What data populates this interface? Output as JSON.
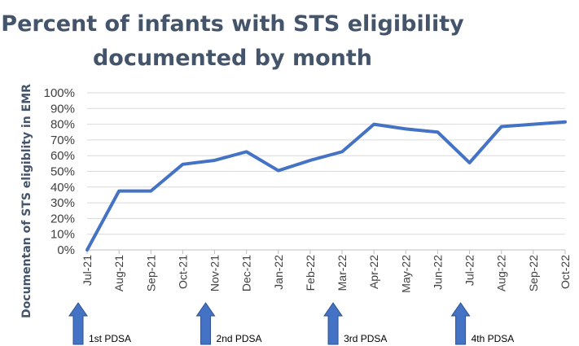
{
  "chart_data": {
    "type": "line",
    "title_lines": [
      "Percent of infants with STS eligibility",
      "documented by month"
    ],
    "xlabel": "",
    "ylabel": "Documentan of STS eligiblity in EMR",
    "categories": [
      "Jul-21",
      "Aug-21",
      "Sep-21",
      "Oct-21",
      "Nov-21",
      "Dec-21",
      "Jan-22",
      "Feb-22",
      "Mar-22",
      "Apr-22",
      "May-22",
      "Jun-22",
      "Jul-22",
      "Aug-22",
      "Sep-22",
      "Oct-22"
    ],
    "series": [
      {
        "values": [
          0,
          37.5,
          37.5,
          54.5,
          57,
          62.5,
          50.5,
          57,
          62.5,
          80,
          77,
          75,
          55.5,
          78.5,
          80,
          81.5
        ]
      }
    ],
    "ylim": [
      0,
      100
    ],
    "yticks": [
      0,
      10,
      20,
      30,
      40,
      50,
      60,
      70,
      80,
      90,
      100
    ],
    "ytick_labels": [
      "0%",
      "10%",
      "20%",
      "30%",
      "40%",
      "50%",
      "60%",
      "70%",
      "80%",
      "90%",
      "100%"
    ],
    "grid": true,
    "line_color": "#4472c4",
    "grid_color": "#d9d9d9",
    "annotations": [
      {
        "label": "1st PDSA",
        "category": "Jul-21"
      },
      {
        "label": "2nd PDSA",
        "category": "Nov-21"
      },
      {
        "label": "3rd PDSA",
        "category": "Mar-22"
      },
      {
        "label": "4th PDSA",
        "category": "Jul-22"
      }
    ],
    "annotation_color": "#4472c4"
  }
}
